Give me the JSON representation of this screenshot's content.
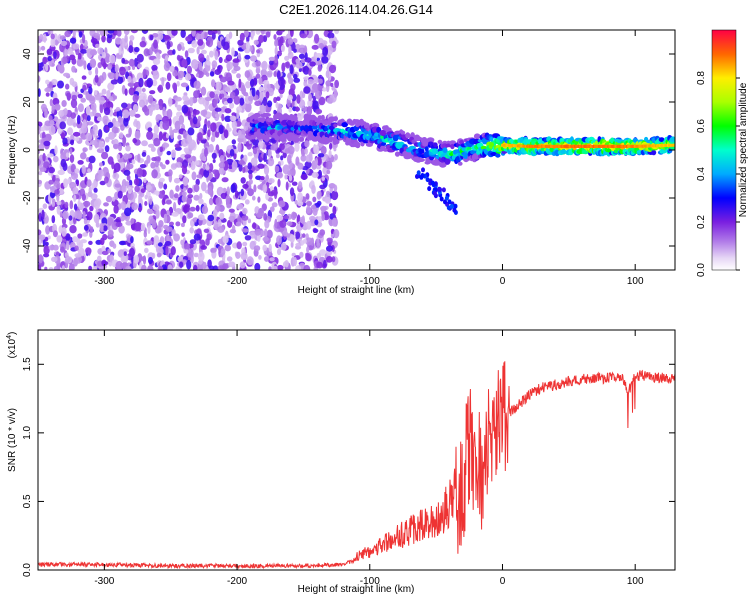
{
  "title": "C2E1.2026.114.04.26.G14",
  "chart_data": [
    {
      "type": "heatmap",
      "xlabel": "Height of straight line (km)",
      "ylabel": "Frequency (Hz)",
      "xlim": [
        -350,
        130
      ],
      "ylim": [
        -50,
        50
      ],
      "xticks": [
        -300,
        -200,
        -100,
        0,
        100
      ],
      "xtick_labels": [
        "-300",
        "-200",
        "-100",
        "0",
        "100"
      ],
      "yticks": [
        -40,
        -20,
        0,
        20,
        40
      ],
      "ytick_labels": [
        "-40",
        "-20",
        "0",
        "20",
        "40"
      ],
      "colorbar": {
        "label": "Normalized spectral amplitude",
        "range": [
          0,
          1
        ],
        "ticks": [
          0,
          0.2,
          0.4,
          0.6,
          0.8
        ],
        "tick_labels": [
          "0.0",
          "0.2",
          "0.4",
          "0.6",
          "0.8"
        ]
      },
      "noise_region": {
        "x_range": [
          -350,
          -125
        ],
        "y_range": [
          -50,
          50
        ],
        "amplitude": [
          0.05,
          0.25
        ]
      },
      "signal_track": [
        {
          "x": -190,
          "y": 10,
          "amplitude": 0.5
        },
        {
          "x": -150,
          "y": 9,
          "amplitude": 0.45
        },
        {
          "x": -120,
          "y": 8,
          "amplitude": 0.55
        },
        {
          "x": -90,
          "y": 5,
          "amplitude": 0.6
        },
        {
          "x": -60,
          "y": 0,
          "amplitude": 0.55
        },
        {
          "x": -40,
          "y": -2,
          "amplitude": 0.6
        },
        {
          "x": -20,
          "y": 1,
          "amplitude": 0.65
        },
        {
          "x": 0,
          "y": 2,
          "amplitude": 0.85
        },
        {
          "x": 20,
          "y": 1.5,
          "amplitude": 0.9
        },
        {
          "x": 60,
          "y": 1.5,
          "amplitude": 0.92
        },
        {
          "x": 100,
          "y": 1.5,
          "amplitude": 0.9
        },
        {
          "x": 130,
          "y": 2,
          "amplitude": 0.85
        }
      ]
    },
    {
      "type": "line",
      "xlabel": "Height of straight line (km)",
      "ylabel": "SNR (10 * v/v)",
      "y_scale_label": "(x10",
      "y_scale_exponent": "4",
      "xlim": [
        -350,
        130
      ],
      "ylim": [
        0,
        1.75
      ],
      "xticks": [
        -300,
        -200,
        -100,
        0,
        100
      ],
      "xtick_labels": [
        "-300",
        "-200",
        "-100",
        "0",
        "100"
      ],
      "yticks": [
        0,
        0.5,
        1.0,
        1.5
      ],
      "ytick_labels": [
        "0.0",
        "0.5",
        "1.0",
        "1.5"
      ],
      "series": [
        {
          "name": "SNR",
          "color": "#ee3333",
          "x": [
            -350,
            -300,
            -250,
            -200,
            -150,
            -120,
            -100,
            -80,
            -60,
            -50,
            -40,
            -30,
            -25,
            -20,
            -15,
            -10,
            -5,
            0,
            10,
            20,
            30,
            40,
            50,
            60,
            80,
            90,
            95,
            100,
            110,
            120,
            130
          ],
          "y": [
            0.04,
            0.04,
            0.03,
            0.03,
            0.03,
            0.04,
            0.12,
            0.2,
            0.28,
            0.3,
            0.4,
            0.55,
            0.9,
            0.75,
            0.65,
            0.85,
            1.0,
            1.1,
            1.18,
            1.28,
            1.33,
            1.35,
            1.38,
            1.39,
            1.4,
            1.41,
            1.3,
            1.42,
            1.41,
            1.4,
            1.4
          ]
        }
      ]
    }
  ]
}
